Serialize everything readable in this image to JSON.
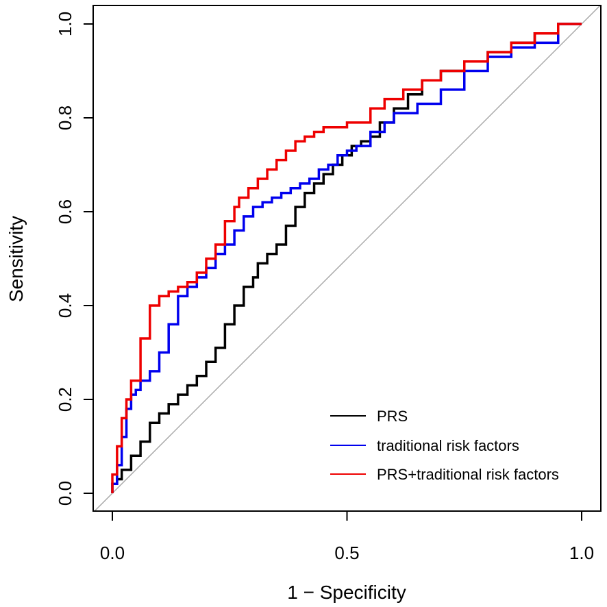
{
  "chart_data": {
    "type": "line",
    "title": "",
    "xlabel": "1 − Specificity",
    "ylabel": "Sensitivity",
    "xlim": [
      -0.04,
      1.04
    ],
    "ylim": [
      -0.04,
      1.04
    ],
    "xticks": [
      0.0,
      0.5,
      1.0
    ],
    "xtick_labels": [
      "0.0",
      "0.5",
      "1.0"
    ],
    "yticks": [
      0.0,
      0.2,
      0.4,
      0.6,
      0.8,
      1.0
    ],
    "ytick_labels": [
      "0.0",
      "0.2",
      "0.4",
      "0.6",
      "0.8",
      "1.0"
    ],
    "grid": false,
    "legend_position": "bottom-right",
    "reference_line": {
      "name": "chance",
      "color": "#aaaaaa",
      "x": [
        -0.04,
        1.04
      ],
      "y": [
        -0.04,
        1.04
      ]
    },
    "series": [
      {
        "name": "PRS",
        "color": "#000000",
        "x": [
          0.0,
          0.01,
          0.02,
          0.04,
          0.06,
          0.08,
          0.1,
          0.12,
          0.14,
          0.16,
          0.18,
          0.2,
          0.22,
          0.24,
          0.26,
          0.28,
          0.3,
          0.31,
          0.33,
          0.35,
          0.37,
          0.39,
          0.41,
          0.43,
          0.45,
          0.47,
          0.49,
          0.51,
          0.53,
          0.55,
          0.57,
          0.6,
          0.63,
          0.66,
          0.7,
          0.75,
          0.8,
          0.85,
          0.9,
          0.95,
          1.0
        ],
        "y": [
          0.0,
          0.02,
          0.03,
          0.05,
          0.08,
          0.11,
          0.15,
          0.17,
          0.19,
          0.21,
          0.23,
          0.25,
          0.28,
          0.31,
          0.36,
          0.4,
          0.44,
          0.46,
          0.49,
          0.51,
          0.53,
          0.57,
          0.61,
          0.64,
          0.66,
          0.68,
          0.7,
          0.72,
          0.74,
          0.75,
          0.76,
          0.79,
          0.82,
          0.85,
          0.88,
          0.9,
          0.92,
          0.94,
          0.96,
          0.98,
          1.0
        ]
      },
      {
        "name": "traditional risk factors",
        "color": "#0000ee",
        "x": [
          0.0,
          0.01,
          0.02,
          0.03,
          0.04,
          0.05,
          0.06,
          0.08,
          0.1,
          0.12,
          0.14,
          0.16,
          0.18,
          0.2,
          0.22,
          0.24,
          0.26,
          0.28,
          0.3,
          0.32,
          0.34,
          0.36,
          0.38,
          0.4,
          0.42,
          0.44,
          0.46,
          0.48,
          0.5,
          0.52,
          0.55,
          0.58,
          0.6,
          0.65,
          0.7,
          0.75,
          0.8,
          0.85,
          0.9,
          0.95,
          1.0
        ],
        "y": [
          0.0,
          0.02,
          0.06,
          0.12,
          0.18,
          0.21,
          0.22,
          0.24,
          0.26,
          0.3,
          0.36,
          0.42,
          0.44,
          0.46,
          0.48,
          0.51,
          0.53,
          0.56,
          0.59,
          0.61,
          0.62,
          0.63,
          0.64,
          0.65,
          0.66,
          0.67,
          0.69,
          0.7,
          0.72,
          0.73,
          0.74,
          0.77,
          0.79,
          0.81,
          0.83,
          0.86,
          0.9,
          0.93,
          0.95,
          0.96,
          1.0
        ]
      },
      {
        "name": "PRS+traditional risk factors",
        "color": "#ee0000",
        "x": [
          0.0,
          0.01,
          0.02,
          0.03,
          0.04,
          0.06,
          0.08,
          0.1,
          0.12,
          0.14,
          0.16,
          0.18,
          0.2,
          0.22,
          0.24,
          0.26,
          0.27,
          0.29,
          0.31,
          0.33,
          0.35,
          0.37,
          0.39,
          0.41,
          0.43,
          0.45,
          0.47,
          0.5,
          0.55,
          0.58,
          0.62,
          0.66,
          0.7,
          0.75,
          0.8,
          0.85,
          0.9,
          0.95,
          1.0
        ],
        "y": [
          0.0,
          0.04,
          0.1,
          0.16,
          0.2,
          0.24,
          0.33,
          0.4,
          0.42,
          0.43,
          0.44,
          0.45,
          0.47,
          0.5,
          0.53,
          0.58,
          0.61,
          0.63,
          0.65,
          0.67,
          0.69,
          0.71,
          0.73,
          0.75,
          0.76,
          0.77,
          0.78,
          0.78,
          0.79,
          0.82,
          0.84,
          0.86,
          0.88,
          0.9,
          0.92,
          0.94,
          0.96,
          0.98,
          1.0
        ]
      }
    ]
  }
}
